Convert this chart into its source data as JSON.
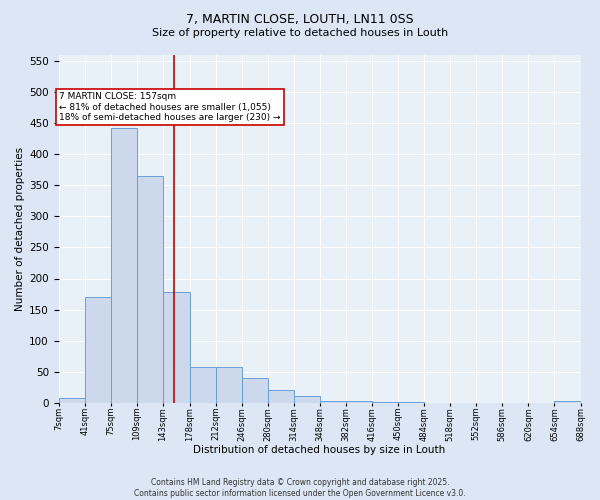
{
  "title_line1": "7, MARTIN CLOSE, LOUTH, LN11 0SS",
  "title_line2": "Size of property relative to detached houses in Louth",
  "xlabel": "Distribution of detached houses by size in Louth",
  "ylabel": "Number of detached properties",
  "bin_edges": [
    7,
    41,
    75,
    109,
    143,
    178,
    212,
    246,
    280,
    314,
    348,
    382,
    416,
    450,
    484,
    518,
    552,
    586,
    620,
    654,
    688
  ],
  "bar_heights": [
    7,
    170,
    443,
    365,
    178,
    57,
    57,
    40,
    20,
    10,
    3,
    2,
    1,
    1,
    0,
    0,
    0,
    0,
    0,
    2
  ],
  "bar_facecolor": "#ccd9ed",
  "bar_edgecolor": "#6a9fd8",
  "vline_x": 157,
  "vline_color": "#cc0000",
  "annotation_text": "7 MARTIN CLOSE: 157sqm\n← 81% of detached houses are smaller (1,055)\n18% of semi-detached houses are larger (230) →",
  "annotation_box_edgecolor": "#cc0000",
  "ylim": [
    0,
    560
  ],
  "yticks": [
    0,
    50,
    100,
    150,
    200,
    250,
    300,
    350,
    400,
    450,
    500,
    550
  ],
  "tick_labels": [
    "7sqm",
    "41sqm",
    "75sqm",
    "109sqm",
    "143sqm",
    "178sqm",
    "212sqm",
    "246sqm",
    "280sqm",
    "314sqm",
    "348sqm",
    "382sqm",
    "416sqm",
    "450sqm",
    "484sqm",
    "518sqm",
    "552sqm",
    "586sqm",
    "620sqm",
    "654sqm",
    "688sqm"
  ],
  "footer_line1": "Contains HM Land Registry data © Crown copyright and database right 2025.",
  "footer_line2": "Contains public sector information licensed under the Open Government Licence v3.0.",
  "bg_color": "#dce6f5",
  "plot_bg_color": "#e8f0f8",
  "grid_color": "#ffffff",
  "title_fontsize": 9,
  "subtitle_fontsize": 8,
  "ylabel_fontsize": 7.5,
  "xlabel_fontsize": 7.5,
  "ytick_fontsize": 7.5,
  "xtick_fontsize": 6,
  "footer_fontsize": 5.5,
  "annot_fontsize": 6.5
}
